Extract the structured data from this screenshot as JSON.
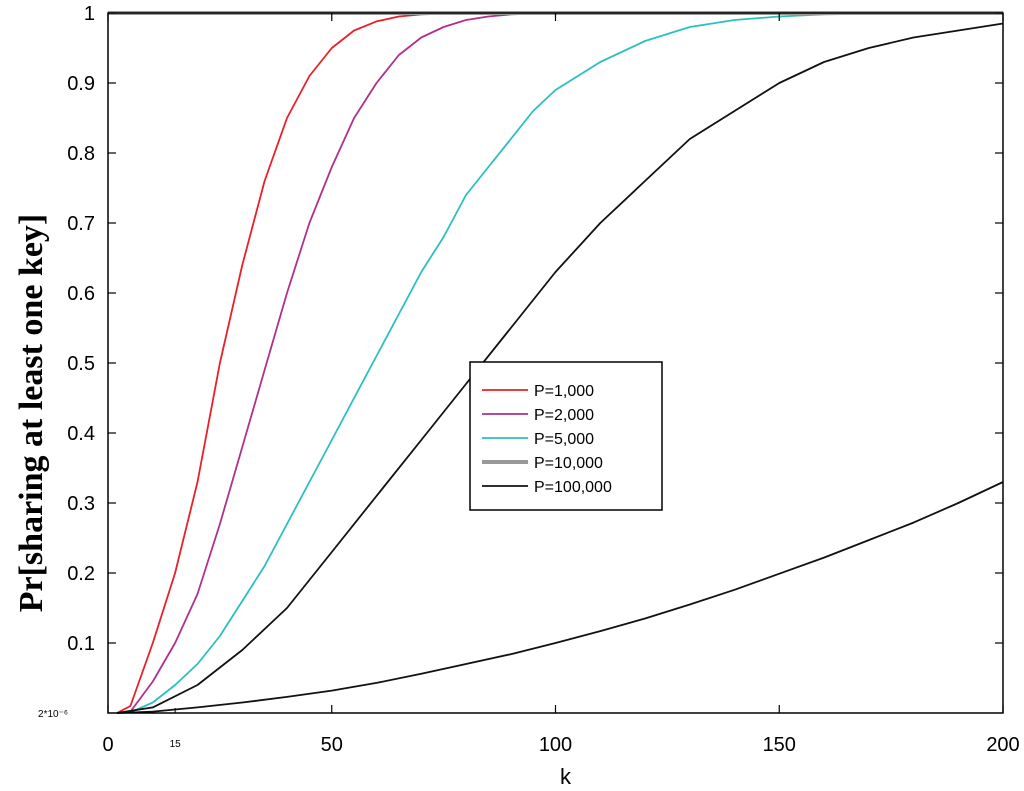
{
  "chart_data": {
    "type": "line",
    "title": "",
    "xlabel": "k",
    "ylabel": "Pr[sharing at least one key]",
    "xlim": [
      0,
      200
    ],
    "ylim": [
      0,
      1
    ],
    "xticks": [
      "0",
      "50",
      "100",
      "150",
      "200"
    ],
    "yticks": [
      "0.1",
      "0.2",
      "0.3",
      "0.4",
      "0.5",
      "0.6",
      "0.7",
      "0.8",
      "0.9",
      "1"
    ],
    "extra_x_tick": "15",
    "extra_y_tick": "2*10⁻⁶",
    "grid": false,
    "legend_position": "center-right",
    "series": [
      {
        "name": "P=1,000",
        "color": "#e8202a",
        "x": [
          2,
          5,
          10,
          15,
          20,
          25,
          30,
          35,
          40,
          45,
          50,
          55,
          60,
          65,
          70,
          75,
          80,
          90,
          100,
          110
        ],
        "y": [
          0,
          0.01,
          0.1,
          0.2,
          0.33,
          0.5,
          0.64,
          0.76,
          0.85,
          0.91,
          0.95,
          0.975,
          0.988,
          0.995,
          0.998,
          0.999,
          1.0,
          1.0,
          1.0,
          1.0
        ]
      },
      {
        "name": "P=2,000",
        "color": "#b0308a",
        "x": [
          2,
          5,
          10,
          15,
          20,
          25,
          30,
          35,
          40,
          45,
          50,
          55,
          60,
          65,
          70,
          75,
          80,
          85,
          90,
          100,
          110,
          120,
          140,
          160,
          170
        ],
        "y": [
          0,
          0.002,
          0.045,
          0.1,
          0.17,
          0.27,
          0.38,
          0.49,
          0.6,
          0.7,
          0.78,
          0.85,
          0.9,
          0.94,
          0.965,
          0.98,
          0.99,
          0.995,
          0.998,
          1.0,
          1.0,
          1.0,
          1.0,
          1.0,
          1.0
        ]
      },
      {
        "name": "P=5,000",
        "color": "#2cbfbf",
        "x": [
          2,
          5,
          10,
          15,
          20,
          25,
          30,
          35,
          40,
          45,
          50,
          55,
          60,
          65,
          70,
          75,
          80,
          85,
          90,
          95,
          100,
          110,
          120,
          130,
          140,
          150,
          160,
          170,
          175
        ],
        "y": [
          0,
          0.001,
          0.015,
          0.04,
          0.07,
          0.11,
          0.16,
          0.21,
          0.27,
          0.33,
          0.39,
          0.45,
          0.51,
          0.57,
          0.63,
          0.68,
          0.74,
          0.78,
          0.82,
          0.86,
          0.89,
          0.93,
          0.96,
          0.98,
          0.99,
          0.995,
          0.998,
          0.999,
          1.0
        ]
      },
      {
        "name": "P=10,000",
        "color": "#999999",
        "x": [
          0,
          10,
          20,
          40,
          60,
          80,
          100,
          120,
          140,
          160,
          180,
          200
        ],
        "y": [
          1,
          1,
          1,
          1,
          1,
          1,
          1,
          1,
          1,
          1,
          1,
          1
        ]
      },
      {
        "name": "P=100,000",
        "color": "#111111",
        "x": [
          2,
          10,
          20,
          30,
          40,
          50,
          60,
          70,
          80,
          90,
          100,
          110,
          120,
          130,
          140,
          150,
          160,
          170,
          180,
          190,
          200
        ],
        "y": [
          0,
          0.002,
          0.008,
          0.015,
          0.023,
          0.032,
          0.043,
          0.056,
          0.07,
          0.084,
          0.1,
          0.117,
          0.135,
          0.155,
          0.176,
          0.199,
          0.222,
          0.247,
          0.272,
          0.3,
          0.33
        ]
      },
      {
        "name": "",
        "color": "#111111",
        "x": [
          2,
          10,
          20,
          30,
          40,
          50,
          60,
          70,
          80,
          90,
          100,
          110,
          120,
          130,
          140,
          150,
          160,
          170,
          180,
          190,
          200
        ],
        "y": [
          0,
          0.008,
          0.04,
          0.09,
          0.15,
          0.23,
          0.31,
          0.39,
          0.47,
          0.55,
          0.63,
          0.7,
          0.76,
          0.82,
          0.86,
          0.9,
          0.93,
          0.95,
          0.965,
          0.975,
          0.985
        ]
      }
    ]
  }
}
